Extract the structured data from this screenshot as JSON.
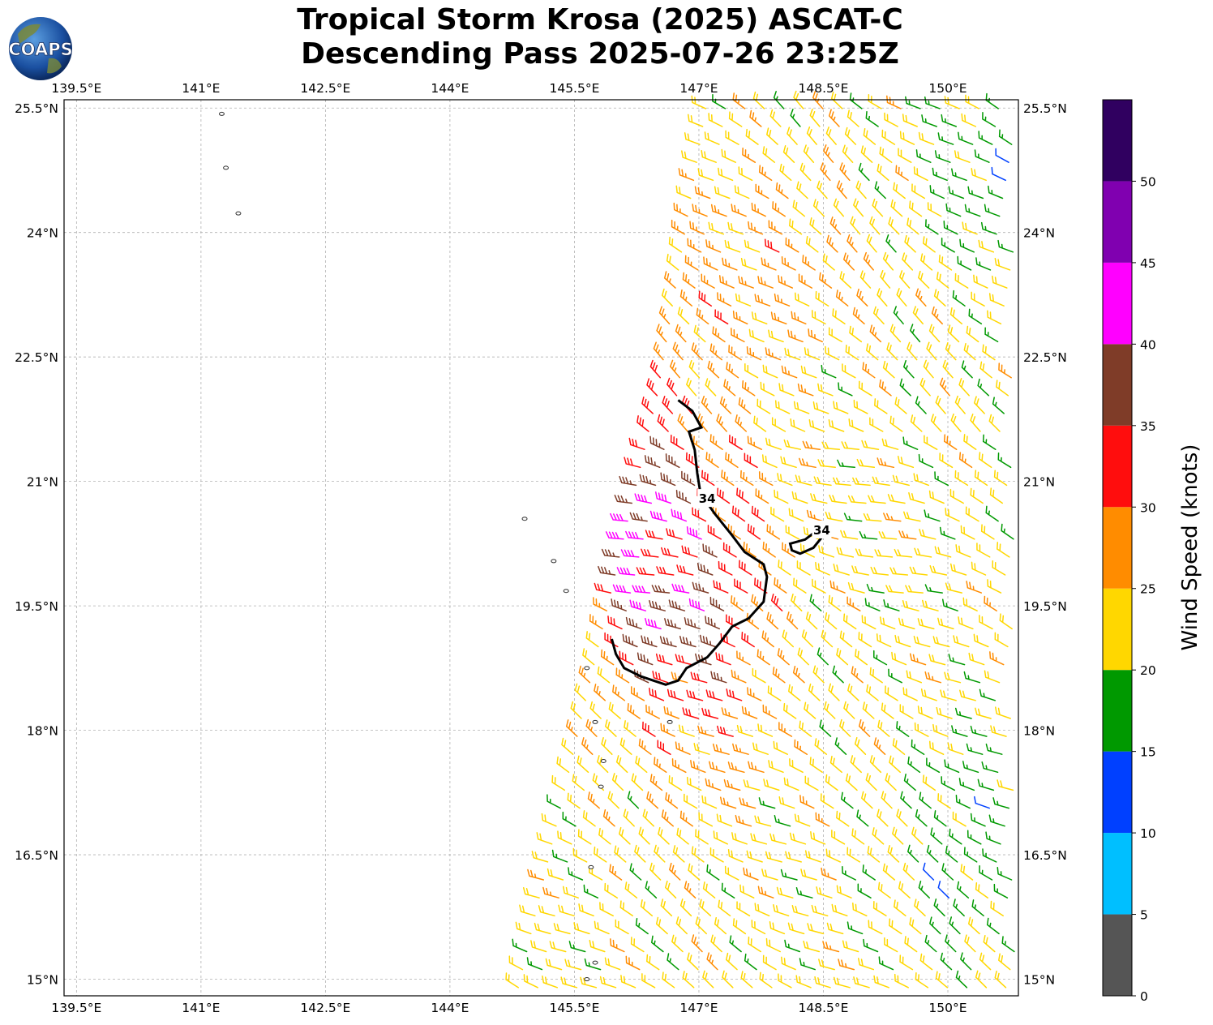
{
  "logo_text": "COAPS",
  "title_line1": "Tropical Storm Krosa (2025) ASCAT-C",
  "title_line2": "Descending Pass 2025-07-26 23:25Z",
  "chart_data": {
    "type": "wind-barb-map",
    "title": "Tropical Storm Krosa (2025) ASCAT-C Descending Pass 2025-07-26 23:25Z",
    "xlim": [
      139.35,
      150.85
    ],
    "ylim": [
      14.8,
      25.6
    ],
    "x_ticks": [
      139.5,
      141,
      142.5,
      144,
      145.5,
      147,
      148.5,
      150
    ],
    "x_tick_labels": [
      "139.5°E",
      "141°E",
      "142.5°E",
      "144°E",
      "145.5°E",
      "147°E",
      "148.5°E",
      "150°E"
    ],
    "y_ticks": [
      15,
      16.5,
      18,
      19.5,
      21,
      22.5,
      24,
      25.5
    ],
    "y_tick_labels": [
      "15°N",
      "16.5°N",
      "18°N",
      "19.5°N",
      "21°N",
      "22.5°N",
      "24°N",
      "25.5°N"
    ],
    "grid": true,
    "colorbar": {
      "label": "Wind Speed (knots)",
      "bounds": [
        0,
        5,
        10,
        15,
        20,
        25,
        30,
        35,
        40,
        45,
        50,
        55
      ],
      "tick_labels": [
        "0",
        "5",
        "10",
        "15",
        "20",
        "25",
        "30",
        "35",
        "40",
        "45",
        "50"
      ],
      "colors": [
        "#555555",
        "#00bfff",
        "#0040ff",
        "#009900",
        "#ffd700",
        "#ff8c00",
        "#ff0d0d",
        "#7f3c28",
        "#ff00ff",
        "#8000b0",
        "#300060"
      ]
    },
    "storm_center": {
      "lon": 146.7,
      "lat": 20.1
    },
    "contour_34kt": {
      "label": "34",
      "main": [
        [
          146.75,
          21.98
        ],
        [
          146.92,
          21.85
        ],
        [
          147.03,
          21.65
        ],
        [
          146.88,
          21.6
        ],
        [
          146.95,
          21.38
        ],
        [
          146.98,
          21.1
        ],
        [
          147.02,
          20.85
        ],
        [
          147.2,
          20.6
        ],
        [
          147.4,
          20.35
        ],
        [
          147.55,
          20.15
        ],
        [
          147.78,
          20.0
        ],
        [
          147.82,
          19.85
        ],
        [
          147.78,
          19.55
        ],
        [
          147.6,
          19.35
        ],
        [
          147.4,
          19.25
        ],
        [
          147.25,
          19.05
        ],
        [
          147.1,
          18.88
        ],
        [
          146.85,
          18.75
        ],
        [
          146.75,
          18.6
        ],
        [
          146.6,
          18.55
        ],
        [
          146.3,
          18.65
        ],
        [
          146.1,
          18.75
        ],
        [
          146.0,
          18.92
        ],
        [
          145.95,
          19.1
        ]
      ],
      "small": [
        [
          148.1,
          20.25
        ],
        [
          148.28,
          20.3
        ],
        [
          148.48,
          20.45
        ],
        [
          148.5,
          20.35
        ],
        [
          148.38,
          20.2
        ],
        [
          148.22,
          20.13
        ],
        [
          148.12,
          20.17
        ]
      ],
      "label_positions": [
        [
          147.1,
          20.8
        ],
        [
          148.48,
          20.42
        ]
      ]
    },
    "islands": [
      [
        141.25,
        25.43
      ],
      [
        141.3,
        24.78
      ],
      [
        141.45,
        24.23
      ],
      [
        144.9,
        20.55
      ],
      [
        145.25,
        20.04
      ],
      [
        145.4,
        19.68
      ],
      [
        145.65,
        18.75
      ],
      [
        145.75,
        18.1
      ],
      [
        146.65,
        18.1
      ],
      [
        145.85,
        17.63
      ],
      [
        145.82,
        17.32
      ],
      [
        145.7,
        16.35
      ],
      [
        145.75,
        15.2
      ],
      [
        145.65,
        15.0
      ]
    ],
    "swath_west_edge": [
      [
        144.75,
        14.8
      ],
      [
        146.45,
        22.05
      ],
      [
        147.05,
        25.6
      ]
    ],
    "swath_east_edge": [
      150.85
    ],
    "speed_field_note": "Barb speeds sampled every ~0.23 deg; high winds (30-45 kt) west of storm near 146.0-147.5E, 18.5-21.5N; 20-30 kt elsewhere; 15-20 kt along NE and SE edges."
  }
}
